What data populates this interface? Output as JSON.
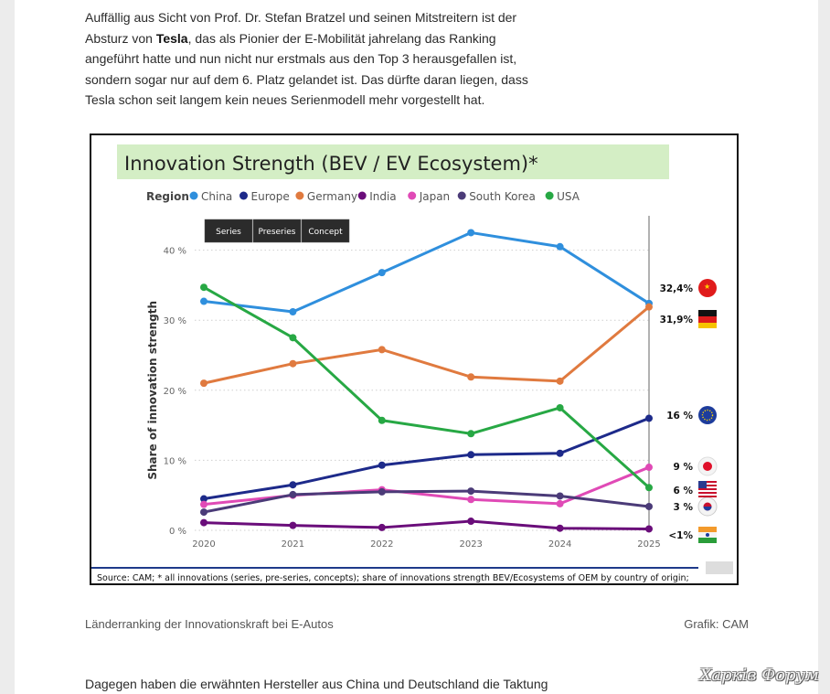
{
  "article": {
    "p1_before": "Auffällig aus Sicht von Prof. Dr. Stefan Bratzel und seinen Mitstreitern ist der Absturz von ",
    "p1_bold": "Tesla",
    "p1_after": ", das als Pionier der E-Mobilität jahrelang das Ranking angeführt hatte und nun nicht nur erstmals aus den Top 3 herausgefallen ist, sondern sogar nur auf dem 6. Platz gelandet ist. Das dürfte daran liegen, dass Tesla schon seit langem kein neues Serienmodell mehr vorgestellt hat.",
    "caption": "Länderranking der Innovationskraft bei E-Autos",
    "credit": "Grafik: CAM",
    "next_paragraph": "Dagegen haben die erwähnten Hersteller aus China und Deutschland die Taktung",
    "watermark": "Харків Форум"
  },
  "chart_data": {
    "type": "line",
    "title": "Innovation Strength (BEV / EV Ecosystem)*",
    "legend_title": "Region",
    "legend_position": "top-left",
    "filter_buttons": [
      "Series",
      "Preseries",
      "Concept"
    ],
    "ylabel": "Share of innovation strength",
    "xlabel": "",
    "x": [
      "2020",
      "2021",
      "2022",
      "2023",
      "2024",
      "2025"
    ],
    "ylim": [
      0,
      45
    ],
    "yticks": [
      "0 %",
      "10 %",
      "20 %",
      "30 %",
      "40 %"
    ],
    "yticks_values": [
      0,
      10,
      20,
      30,
      40
    ],
    "grid": "horizontal dotted",
    "source": "Source: CAM; * all innovations (series, pre-series, concepts); share of innovations strength BEV/Ecosystems of OEM by country of origin;",
    "series": [
      {
        "name": "China",
        "color": "#2f8fdd",
        "values": [
          32.7,
          31.2,
          36.8,
          42.5,
          40.5,
          32.4
        ],
        "end_label": "32,4%",
        "flag": "china-flag-icon"
      },
      {
        "name": "Europe",
        "color": "#1d2a8a",
        "values": [
          4.5,
          6.5,
          9.3,
          10.8,
          11.0,
          16.0
        ],
        "end_label": "16 %",
        "flag": "eu-flag-icon"
      },
      {
        "name": "Germany",
        "color": "#e07a3f",
        "values": [
          21.0,
          23.8,
          25.8,
          21.9,
          21.3,
          31.9
        ],
        "end_label": "31,9%",
        "flag": "germany-flag-icon"
      },
      {
        "name": "India",
        "color": "#6a0d7a",
        "values": [
          1.1,
          0.7,
          0.4,
          1.3,
          0.3,
          0.2
        ],
        "end_label": "<1%",
        "flag": "india-flag-icon"
      },
      {
        "name": "Japan",
        "color": "#e04ab6",
        "values": [
          3.7,
          5.0,
          5.8,
          4.4,
          3.8,
          9.0
        ],
        "end_label": "9 %",
        "flag": "japan-flag-icon"
      },
      {
        "name": "South Korea",
        "color": "#4b3b78",
        "values": [
          2.6,
          5.1,
          5.5,
          5.6,
          4.9,
          3.4
        ],
        "end_label": "3 %",
        "flag": "korea-flag-icon"
      },
      {
        "name": "USA",
        "color": "#27a844",
        "values": [
          34.7,
          27.5,
          15.7,
          13.8,
          17.5,
          6.1
        ],
        "end_label": "6 %",
        "flag": "usa-flag-icon"
      }
    ]
  }
}
